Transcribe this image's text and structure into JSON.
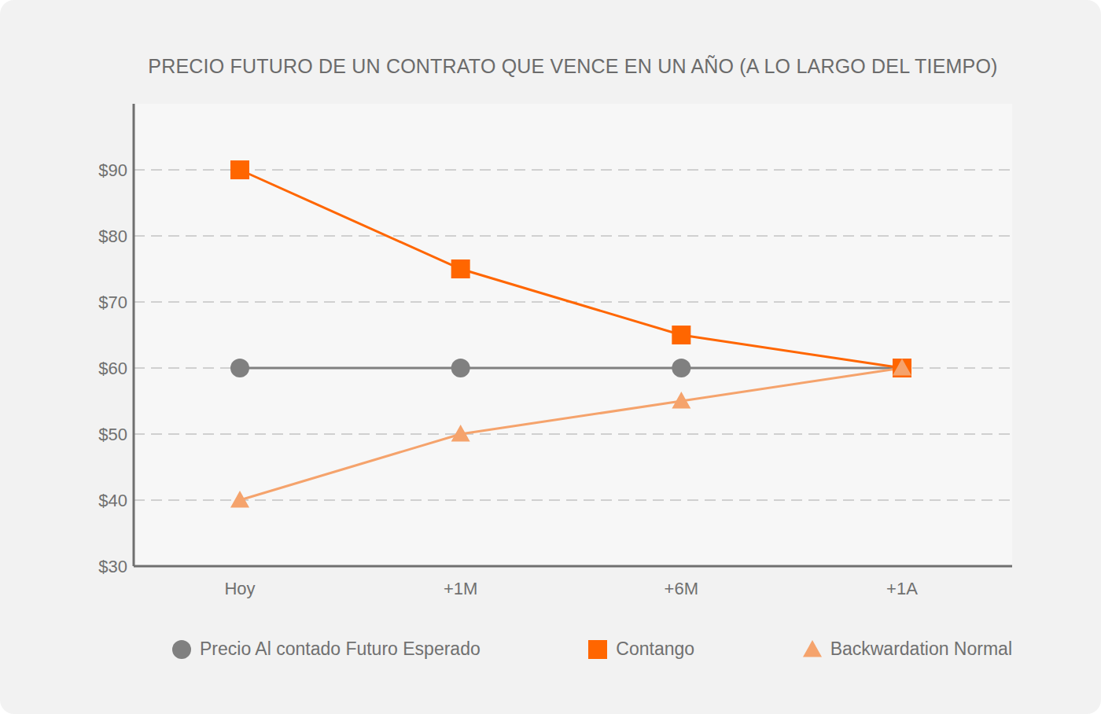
{
  "chart_data": {
    "type": "line",
    "title": "PRECIO FUTURO DE UN CONTRATO QUE VENCE EN UN AÑO (A LO LARGO DEL TIEMPO)",
    "categories": [
      "Hoy",
      "+1M",
      "+6M",
      "+1A"
    ],
    "series": [
      {
        "name": "Precio Al contado Futuro Esperado",
        "color": "#808080",
        "marker": "circle",
        "values": [
          60,
          60,
          60,
          60
        ]
      },
      {
        "name": "Contango",
        "color": "#ff6600",
        "marker": "square",
        "values": [
          90,
          75,
          65,
          60
        ]
      },
      {
        "name": "Backwardation Normal",
        "color": "#f5a36c",
        "marker": "triangle",
        "values": [
          40,
          50,
          55,
          60
        ]
      }
    ],
    "ylim": [
      30,
      100
    ],
    "yticks": [
      {
        "value": 30,
        "label": "$30"
      },
      {
        "value": 40,
        "label": "$40"
      },
      {
        "value": 50,
        "label": "$50"
      },
      {
        "value": 60,
        "label": "$60"
      },
      {
        "value": 70,
        "label": "$70"
      },
      {
        "value": 80,
        "label": "$80"
      },
      {
        "value": 90,
        "label": "$90"
      }
    ],
    "grid": true,
    "legend": "bottom"
  }
}
